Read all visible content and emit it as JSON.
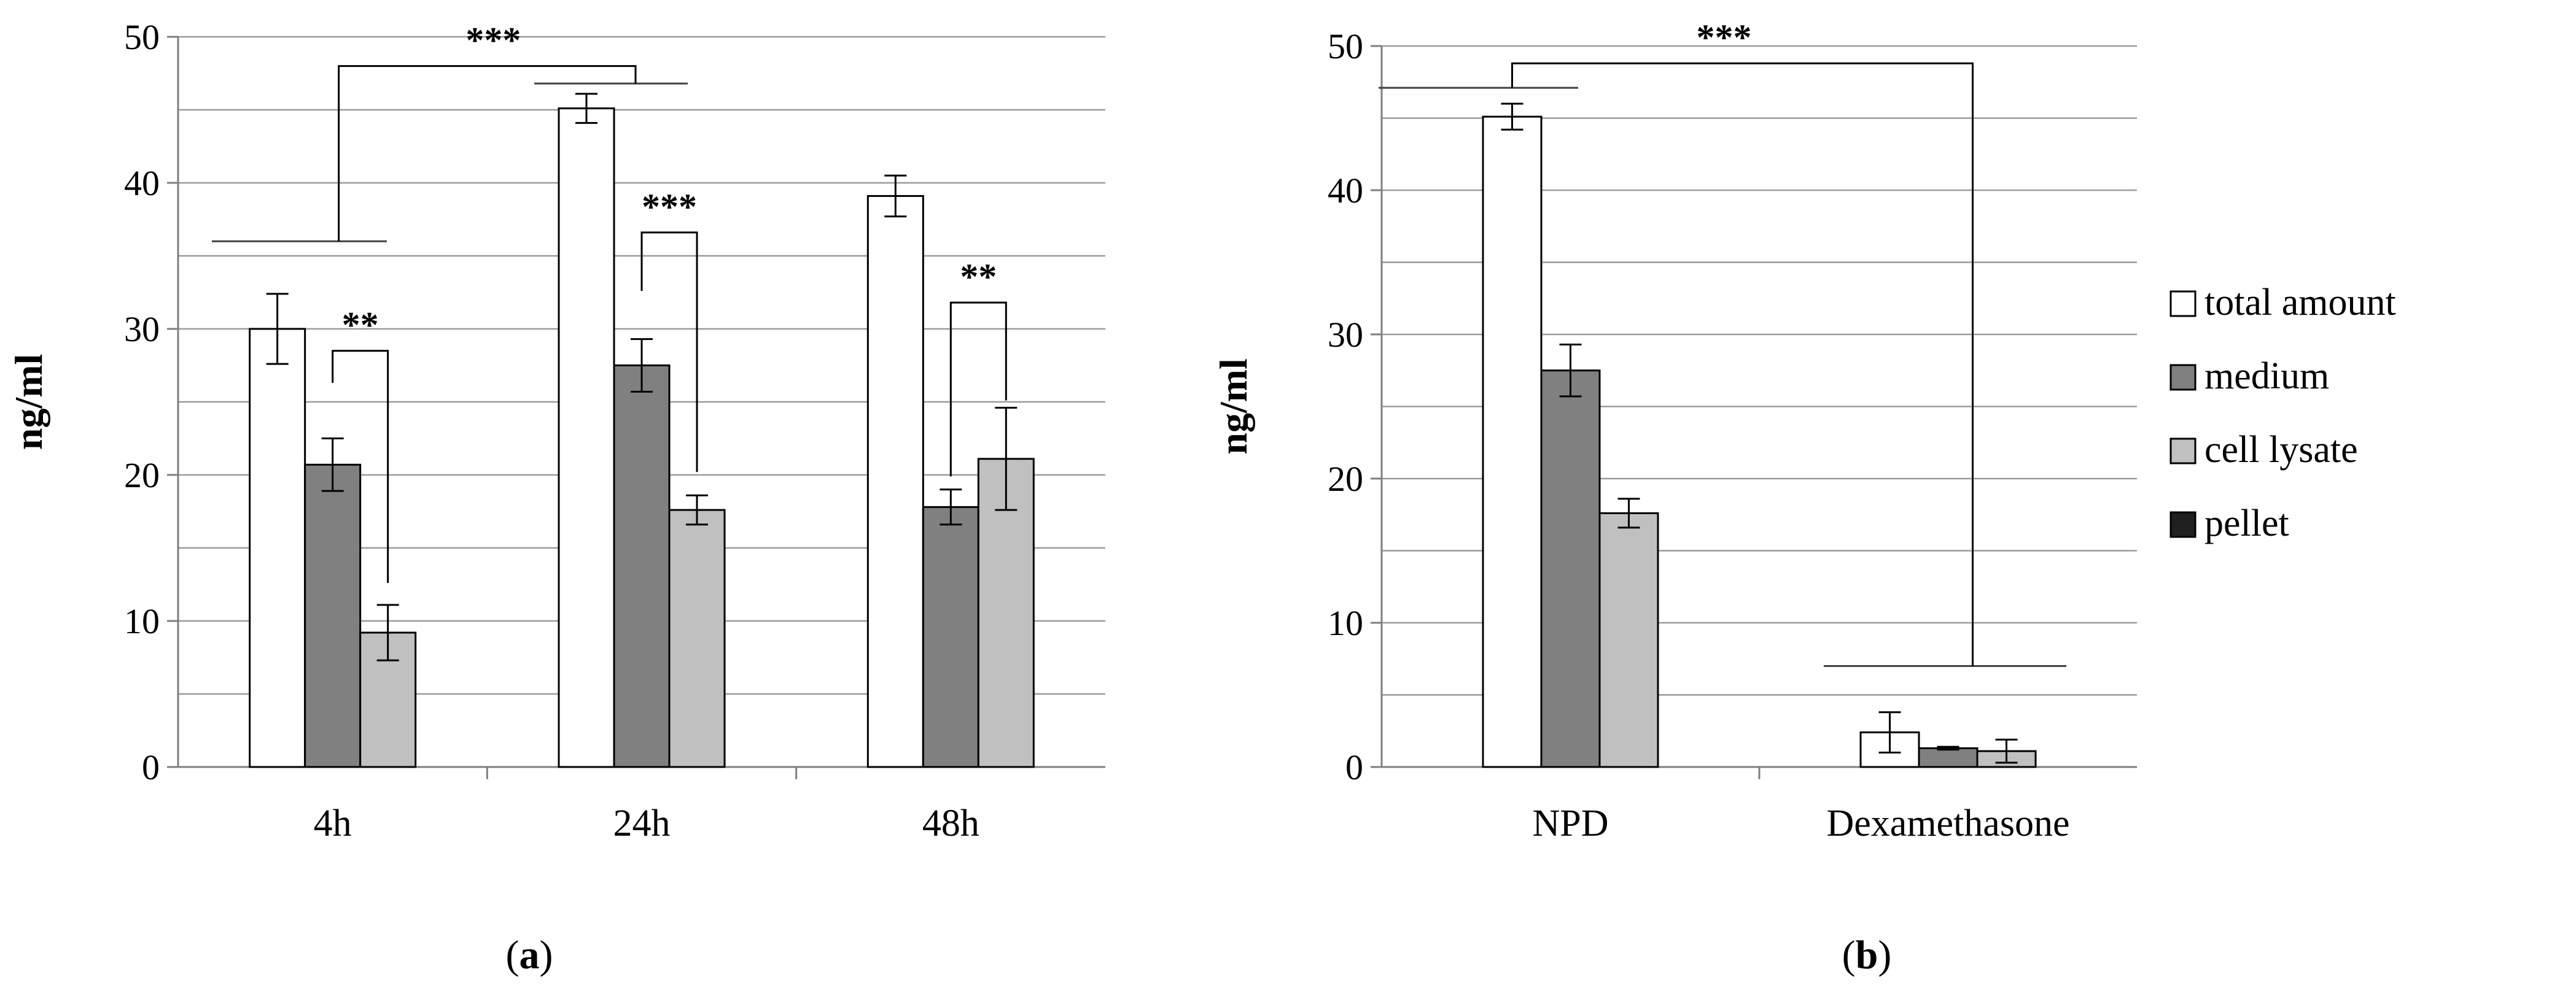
{
  "figure": {
    "panels": [
      {
        "label_open": "(",
        "label_letter": "a",
        "label_close": ")"
      },
      {
        "label_open": "(",
        "label_letter": "b",
        "label_close": ")"
      }
    ]
  },
  "legend": {
    "entries": [
      "total amount",
      "medium",
      "cell lysate",
      "pellet"
    ]
  },
  "chart_data": [
    {
      "type": "bar",
      "panel": "a",
      "categories": [
        "4h",
        "24h",
        "48h"
      ],
      "ylabel": "ng/ml",
      "xlabel": "",
      "ylim": [
        0,
        50
      ],
      "yticks": [
        0,
        10,
        20,
        30,
        40,
        50
      ],
      "grid": true,
      "series": [
        {
          "name": "total amount",
          "color": "#ffffff",
          "values": [
            30.0,
            45.1,
            39.1
          ],
          "errors": [
            2.4,
            1.0,
            1.4
          ]
        },
        {
          "name": "medium",
          "color": "#808080",
          "values": [
            20.7,
            27.5,
            17.8
          ],
          "errors": [
            1.8,
            1.8,
            1.2
          ]
        },
        {
          "name": "cell lysate",
          "color": "#c0c0c0",
          "values": [
            9.2,
            17.6,
            21.1
          ],
          "errors": [
            1.9,
            1.0,
            3.5
          ]
        }
      ],
      "significance": [
        {
          "label": "**",
          "between": [
            "4h medium",
            "4h cell lysate"
          ]
        },
        {
          "label": "***",
          "between": [
            "24h medium",
            "24h cell lysate"
          ]
        },
        {
          "label": "**",
          "between": [
            "48h medium",
            "48h cell lysate"
          ]
        },
        {
          "label": "***",
          "between": [
            "4h",
            "24h"
          ]
        }
      ]
    },
    {
      "type": "bar",
      "panel": "b",
      "categories": [
        "NPD",
        "Dexamethasone"
      ],
      "ylabel": "ng/ml",
      "xlabel": "",
      "ylim": [
        0,
        50
      ],
      "yticks": [
        0,
        10,
        20,
        30,
        40,
        50
      ],
      "grid": true,
      "legend_position": "right",
      "series": [
        {
          "name": "total amount",
          "color": "#ffffff",
          "values": [
            45.1,
            2.4
          ],
          "errors": [
            0.9,
            1.4
          ]
        },
        {
          "name": "medium",
          "color": "#808080",
          "values": [
            27.5,
            1.3
          ],
          "errors": [
            1.8,
            0.1
          ]
        },
        {
          "name": "cell lysate",
          "color": "#c0c0c0",
          "values": [
            17.6,
            1.1
          ],
          "errors": [
            1.0,
            0.8
          ]
        },
        {
          "name": "pellet",
          "color": "#202020",
          "values": [
            0,
            0
          ],
          "errors": [
            0,
            0
          ]
        }
      ],
      "significance": [
        {
          "label": "***",
          "between": [
            "NPD",
            "Dexamethasone"
          ]
        }
      ]
    }
  ]
}
